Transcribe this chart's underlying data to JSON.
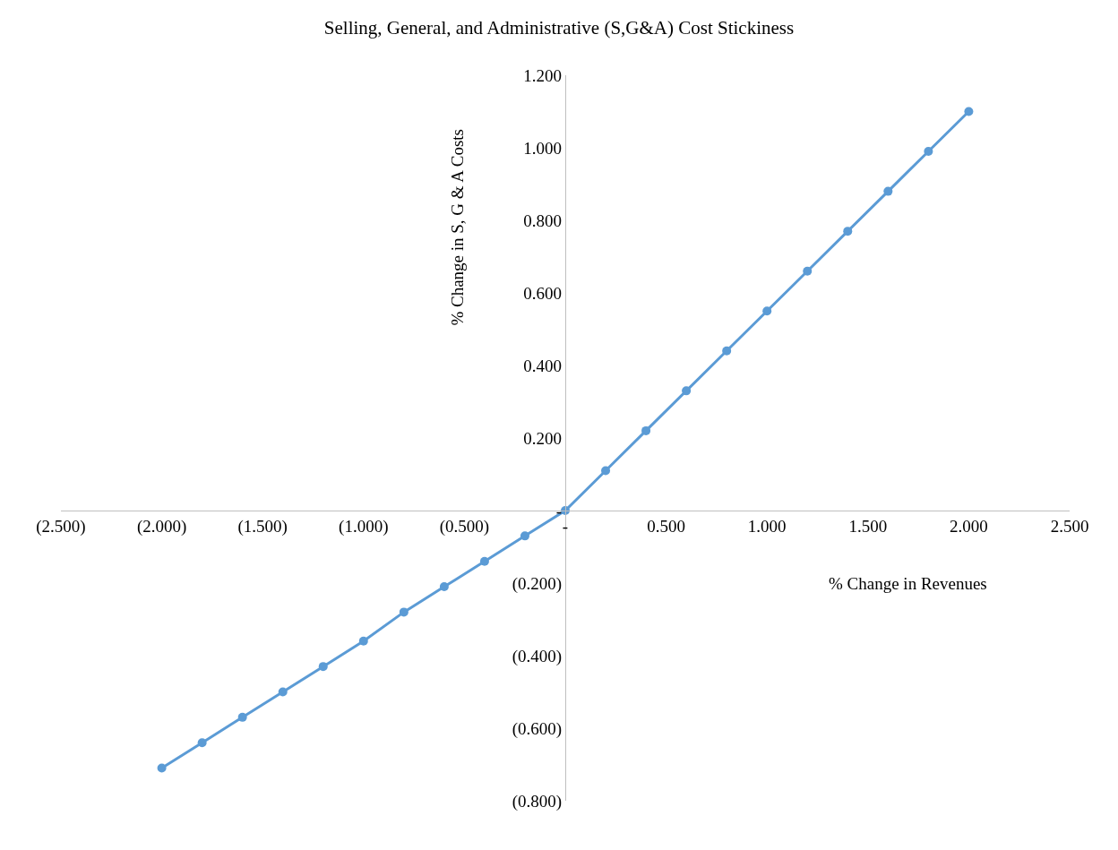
{
  "chart_data": {
    "type": "line",
    "title": "Selling, General, and Administrative (S,G&A) Cost Stickiness",
    "xlabel": "% Change in Revenues",
    "ylabel": "% Change in S, G & A Costs",
    "x": [
      -2,
      -1.8,
      -1.6,
      -1.4,
      -1.2,
      -1,
      -0.8,
      -0.6,
      -0.4,
      -0.2,
      0,
      0.2,
      0.4,
      0.6,
      0.8,
      1,
      1.2,
      1.4,
      1.6,
      1.8,
      2
    ],
    "series": [
      {
        "color": "#5b9bd5",
        "values": [
          -0.71,
          -0.64,
          -0.57,
          -0.5,
          -0.43,
          -0.36,
          -0.28,
          -0.21,
          -0.14,
          -0.07,
          0,
          0.11,
          0.22,
          0.33,
          0.44,
          0.55,
          0.66,
          0.77,
          0.88,
          0.99,
          1.1
        ]
      }
    ],
    "xlim": [
      -2.5,
      2.5
    ],
    "ylim": [
      -0.8,
      1.2
    ],
    "xticks": [
      {
        "value": -2.5,
        "label": "(2.500)"
      },
      {
        "value": -2,
        "label": "(2.000)"
      },
      {
        "value": -1.5,
        "label": "(1.500)"
      },
      {
        "value": -1,
        "label": "(1.000)"
      },
      {
        "value": -0.5,
        "label": "(0.500)"
      },
      {
        "value": 0,
        "label": "-"
      },
      {
        "value": 0.5,
        "label": "0.500"
      },
      {
        "value": 1,
        "label": "1.000"
      },
      {
        "value": 1.5,
        "label": "1.500"
      },
      {
        "value": 2,
        "label": "2.000"
      },
      {
        "value": 2.5,
        "label": "2.500"
      }
    ],
    "yticks": [
      {
        "value": -0.8,
        "label": "(0.800)"
      },
      {
        "value": -0.6,
        "label": "(0.600)"
      },
      {
        "value": -0.4,
        "label": "(0.400)"
      },
      {
        "value": -0.2,
        "label": "(0.200)"
      },
      {
        "value": 0,
        "label": "-"
      },
      {
        "value": 0.2,
        "label": "0.200"
      },
      {
        "value": 0.4,
        "label": "0.400"
      },
      {
        "value": 0.6,
        "label": "0.600"
      },
      {
        "value": 0.8,
        "label": "0.800"
      },
      {
        "value": 1,
        "label": "1.000"
      },
      {
        "value": 1.2,
        "label": "1.200"
      }
    ],
    "grid": false,
    "marker": "circle",
    "line_style": "solid"
  }
}
